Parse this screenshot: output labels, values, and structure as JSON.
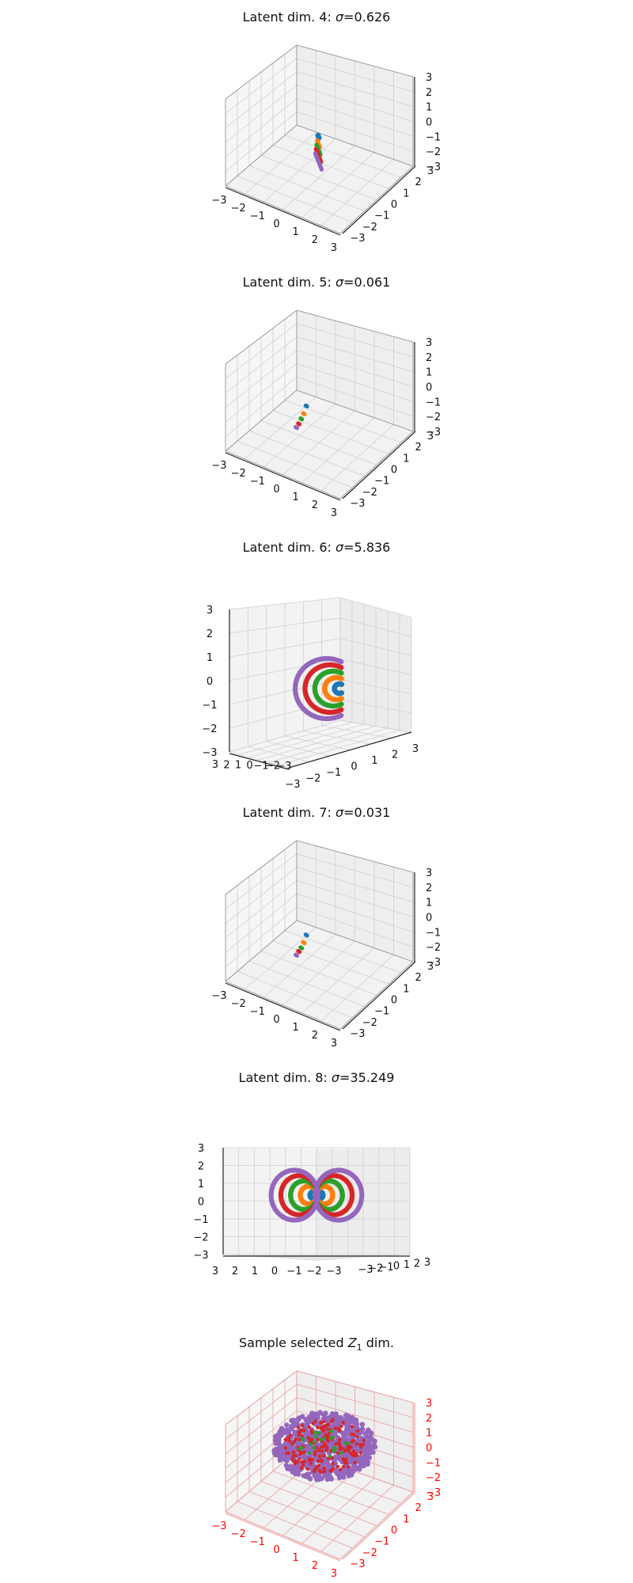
{
  "figure": {
    "colors": {
      "blue": "#1f77b4",
      "orange": "#ff7f0e",
      "green": "#2ca02c",
      "red": "#d62728",
      "purple": "#9467bd",
      "pane": "#f2f2f2",
      "grid": "#d0d0d0",
      "axis_red": "#e8a0a0",
      "text_red": "#ff0000"
    }
  },
  "chart_data": [
    {
      "type": "scatter",
      "title_prefix": "Latent dim. 4: ",
      "title_sigma": "σ",
      "title_value": "=0.626",
      "view": "standard",
      "xlim": [
        -3,
        3
      ],
      "ylim": [
        -3,
        3
      ],
      "zlim": [
        -3,
        3
      ],
      "x_ticks": [
        "−3",
        "−2",
        "−1",
        "0",
        "1",
        "2",
        "3"
      ],
      "y_ticks": [
        "−3",
        "−2",
        "−1",
        "0",
        "1",
        "2",
        "3"
      ],
      "z_ticks": [
        "−3",
        "−2",
        "−1",
        "0",
        "1",
        "2",
        "3"
      ],
      "shape": "flat-stack",
      "series": [
        {
          "color": "blue",
          "radius": 0.35,
          "z": 0.2
        },
        {
          "color": "orange",
          "radius": 0.9,
          "z": -0.4
        },
        {
          "color": "green",
          "radius": 1.3,
          "z": -0.9
        },
        {
          "color": "red",
          "radius": 1.7,
          "z": -1.4
        },
        {
          "color": "purple",
          "radius": 2.1,
          "z": -1.9
        }
      ]
    },
    {
      "type": "scatter",
      "title_prefix": "Latent dim. 5: ",
      "title_sigma": "σ",
      "title_value": "=0.061",
      "view": "standard",
      "xlim": [
        -3,
        3
      ],
      "ylim": [
        -3,
        3
      ],
      "zlim": [
        -3,
        3
      ],
      "x_ticks": [
        "−3",
        "−2",
        "−1",
        "0",
        "1",
        "2",
        "3"
      ],
      "y_ticks": [
        "−3",
        "−2",
        "−1",
        "0",
        "1",
        "2",
        "3"
      ],
      "z_ticks": [
        "−3",
        "−2",
        "−1",
        "0",
        "1",
        "2",
        "3"
      ],
      "shape": "tiny",
      "series": [
        {
          "color": "blue",
          "radius": 0.05,
          "z": 0.2
        },
        {
          "color": "orange",
          "radius": 0.1,
          "z": -0.4
        },
        {
          "color": "green",
          "radius": 0.15,
          "z": -0.8
        },
        {
          "color": "red",
          "radius": 0.2,
          "z": -1.2
        },
        {
          "color": "purple",
          "radius": 0.25,
          "z": -1.5
        }
      ]
    },
    {
      "type": "scatter",
      "title_prefix": "Latent dim. 6: ",
      "title_sigma": "σ",
      "title_value": "=5.836",
      "view": "rotated",
      "xlim": [
        -3,
        3
      ],
      "ylim": [
        -3,
        3
      ],
      "zlim": [
        -3,
        3
      ],
      "x_ticks": [
        "−3",
        "−2",
        "−1",
        "0",
        "1",
        "2",
        "3"
      ],
      "y_ticks": [
        "3",
        "2",
        "1",
        "0",
        "−1",
        "−2",
        "−3"
      ],
      "z_ticks": [
        "−3",
        "−2",
        "−1",
        "0",
        "1",
        "2",
        "3"
      ],
      "shape": "c-rings",
      "series": [
        {
          "color": "blue",
          "radius": 0.3
        },
        {
          "color": "orange",
          "radius": 0.7
        },
        {
          "color": "green",
          "radius": 1.1
        },
        {
          "color": "red",
          "radius": 1.5
        },
        {
          "color": "purple",
          "radius": 1.9
        }
      ]
    },
    {
      "type": "scatter",
      "title_prefix": "Latent dim. 7: ",
      "title_sigma": "σ",
      "title_value": "=0.031",
      "view": "standard",
      "xlim": [
        -3,
        3
      ],
      "ylim": [
        -3,
        3
      ],
      "zlim": [
        -3,
        3
      ],
      "x_ticks": [
        "−3",
        "−2",
        "−1",
        "0",
        "1",
        "2",
        "3"
      ],
      "y_ticks": [
        "−3",
        "−2",
        "−1",
        "0",
        "1",
        "2",
        "3"
      ],
      "z_ticks": [
        "−3",
        "−2",
        "−1",
        "0",
        "1",
        "2",
        "3"
      ],
      "shape": "tiny",
      "series": [
        {
          "color": "blue",
          "radius": 0.05,
          "z": 0.3
        },
        {
          "color": "orange",
          "radius": 0.1,
          "z": -0.3
        },
        {
          "color": "green",
          "radius": 0.15,
          "z": -0.7
        },
        {
          "color": "red",
          "radius": 0.2,
          "z": -1.0
        },
        {
          "color": "purple",
          "radius": 0.25,
          "z": -1.3
        }
      ]
    },
    {
      "type": "scatter",
      "title_prefix": "Latent dim. 8: ",
      "title_sigma": "σ",
      "title_value": "=35.249",
      "view": "side",
      "xlim": [
        -3,
        3
      ],
      "ylim": [
        -3,
        3
      ],
      "zlim": [
        -3,
        3
      ],
      "x_ticks": [
        "3",
        "2",
        "1",
        "0",
        "−1",
        "−2",
        "−3"
      ],
      "y_ticks": [
        "−3",
        "−2",
        "−1",
        "0",
        "1",
        "2",
        "3"
      ],
      "z_ticks": [
        "−3",
        "−2",
        "−1",
        "0",
        "1",
        "2",
        "3"
      ],
      "shape": "double-rings",
      "series": [
        {
          "color": "blue",
          "radius": 0.3
        },
        {
          "color": "orange",
          "radius": 0.75
        },
        {
          "color": "green",
          "radius": 1.2
        },
        {
          "color": "red",
          "radius": 1.65
        },
        {
          "color": "purple",
          "radius": 2.1
        }
      ]
    },
    {
      "type": "scatter",
      "title_prefix": "Sample selected ",
      "title_sigma": "Z",
      "title_sub": "1",
      "title_value": " dim.",
      "view": "standard",
      "highlight": true,
      "xlim": [
        -3,
        3
      ],
      "ylim": [
        -3,
        3
      ],
      "zlim": [
        -3,
        3
      ],
      "x_ticks": [
        "−3",
        "−2",
        "−1",
        "0",
        "1",
        "2",
        "3"
      ],
      "y_ticks": [
        "−3",
        "−2",
        "−1",
        "0",
        "1",
        "2",
        "3"
      ],
      "z_ticks": [
        "−3",
        "−2",
        "−1",
        "0",
        "1",
        "2",
        "3"
      ],
      "shape": "blob",
      "series": [
        {
          "color": "purple",
          "radius": 2.4
        },
        {
          "color": "red",
          "radius": 1.9
        },
        {
          "color": "green",
          "radius": 1.2
        }
      ]
    }
  ]
}
